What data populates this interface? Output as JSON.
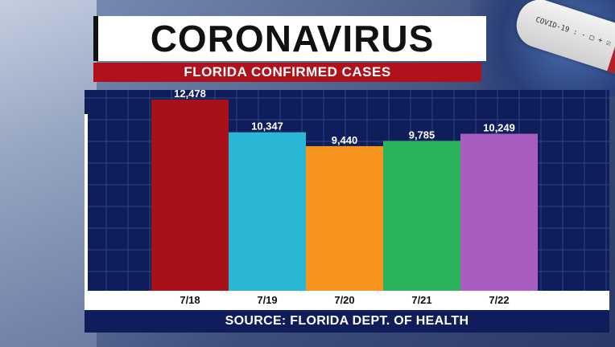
{
  "header": {
    "title": "CORONAVIRUS",
    "subtitle": "FLORIDA CONFIRMED CASES"
  },
  "decor": {
    "tube_label": "COVID-19 : - □ + ☑"
  },
  "footer": {
    "source": "SOURCE: FLORIDA DEPT. OF HEALTH"
  },
  "chart_data": {
    "type": "bar",
    "title": "FLORIDA CONFIRMED CASES",
    "categories": [
      "7/18",
      "7/19",
      "7/20",
      "7/21",
      "7/22"
    ],
    "values": [
      12478,
      10347,
      9440,
      9785,
      10249
    ],
    "value_labels": [
      "12,478",
      "10,347",
      "9,440",
      "9,785",
      "10,249"
    ],
    "colors": [
      "#a8101a",
      "#2ab7d6",
      "#f7941d",
      "#2bb35a",
      "#a85ec0"
    ],
    "ylim": [
      0,
      12478
    ],
    "grid": true,
    "xlabel": "",
    "ylabel": ""
  }
}
